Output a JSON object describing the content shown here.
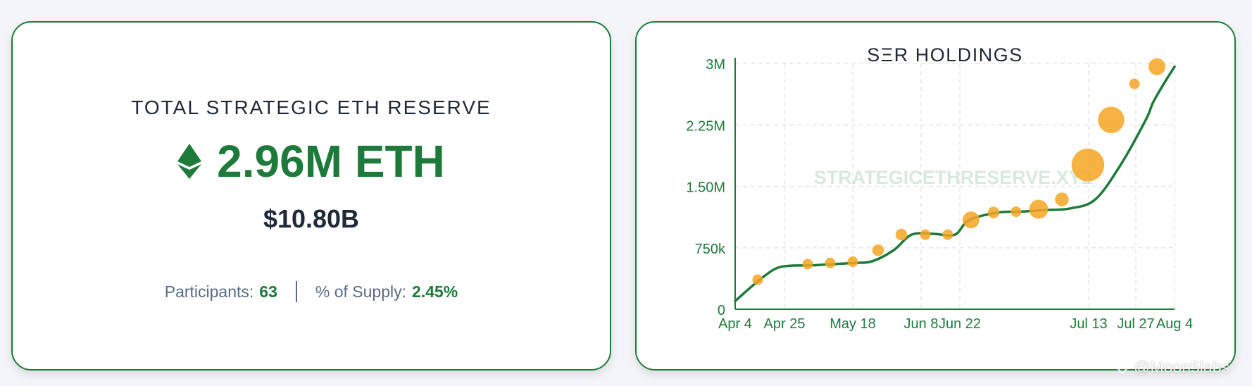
{
  "summary": {
    "title": "TOTAL STRATEGIC ETH RESERVE",
    "amount": "2.96M ETH",
    "usd_value": "$10.80B",
    "participants_label": "Participants:",
    "participants_value": "63",
    "supply_label": "% of Supply:",
    "supply_value": "2.45%",
    "icon": "ethereum-icon"
  },
  "colors": {
    "accent": "#1e7a3a",
    "marker": "#f5a623",
    "text_dark": "#1f2937",
    "text_muted": "#5b6b85"
  },
  "chart_data": {
    "type": "line",
    "title": "SΞR HOLDINGS",
    "watermark": "STRATEGICETHRESERVE.XYZ",
    "x_ticks": [
      "Apr 4",
      "Apr 25",
      "May 18",
      "Jun 8",
      "Jun 22",
      "Jul 13",
      "Jul 27",
      "Aug 4"
    ],
    "y_ticks": [
      "0",
      "750k",
      "1.50M",
      "2.25M",
      "3M"
    ],
    "ylim": [
      0,
      3000000
    ],
    "xlim": [
      "2025-04-04",
      "2025-08-04"
    ],
    "grid": true,
    "series": [
      {
        "line": [
          [
            "2025-04-04",
            100000
          ],
          [
            "2025-04-10",
            330000
          ],
          [
            "2025-04-15",
            490000
          ],
          [
            "2025-04-19",
            530000
          ],
          [
            "2025-04-25",
            535000
          ],
          [
            "2025-05-01",
            550000
          ],
          [
            "2025-05-07",
            565000
          ],
          [
            "2025-05-12",
            585000
          ],
          [
            "2025-05-18",
            720000
          ],
          [
            "2025-05-23",
            910000
          ],
          [
            "2025-05-29",
            920000
          ],
          [
            "2025-06-04",
            910000
          ],
          [
            "2025-06-08",
            1090000
          ],
          [
            "2025-06-16",
            1180000
          ],
          [
            "2025-06-22",
            1190000
          ],
          [
            "2025-06-29",
            1210000
          ],
          [
            "2025-07-06",
            1230000
          ],
          [
            "2025-07-13",
            1340000
          ],
          [
            "2025-07-20",
            1760000
          ],
          [
            "2025-07-27",
            2310000
          ],
          [
            "2025-07-29",
            2520000
          ],
          [
            "2025-08-01",
            2750000
          ],
          [
            "2025-08-04",
            2960000
          ]
        ],
        "markers": [
          {
            "date": "2025-04-14",
            "value": 360000,
            "size": 1
          },
          {
            "date": "2025-04-28",
            "value": 550000,
            "size": 1
          },
          {
            "date": "2025-05-05",
            "value": 565000,
            "size": 1
          },
          {
            "date": "2025-05-12",
            "value": 580000,
            "size": 1
          },
          {
            "date": "2025-05-19",
            "value": 720000,
            "size": 1.1
          },
          {
            "date": "2025-05-27",
            "value": 910000,
            "size": 1.1
          },
          {
            "date": "2025-06-04",
            "value": 910000,
            "size": 1
          },
          {
            "date": "2025-06-11",
            "value": 910000,
            "size": 1
          },
          {
            "date": "2025-06-19",
            "value": 1090000,
            "size": 1.6
          },
          {
            "date": "2025-06-25",
            "value": 1180000,
            "size": 1.1
          },
          {
            "date": "2025-07-03",
            "value": 1190000,
            "size": 1
          },
          {
            "date": "2025-07-11",
            "value": 1220000,
            "size": 1.8
          },
          {
            "date": "2025-07-18",
            "value": 1340000,
            "size": 1.3
          },
          {
            "date": "2025-07-26",
            "value": 1760000,
            "size": 3.1
          },
          {
            "date": "2025-08-03",
            "value": 2310000,
            "size": 2.5
          },
          {
            "date": "2025-08-10",
            "value": 2750000,
            "size": 1
          },
          {
            "date": "2025-08-16",
            "value": 2960000,
            "size": 1.6
          }
        ]
      }
    ]
  },
  "footer": {
    "credit": "@Moon5labs"
  }
}
